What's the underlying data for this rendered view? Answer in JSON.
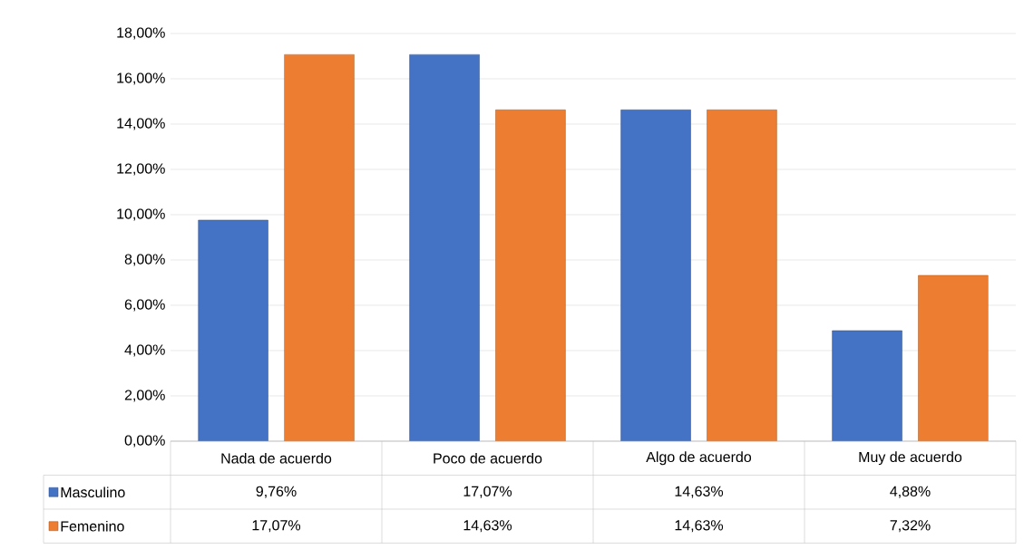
{
  "chart_data": {
    "type": "bar",
    "categories": [
      "Nada de acuerdo",
      "Poco de acuerdo",
      "Algo de acuerdo",
      "Muy de acuerdo"
    ],
    "series": [
      {
        "name": "Masculino",
        "color": "#4472c4",
        "values": [
          9.76,
          17.07,
          14.63,
          4.88
        ],
        "value_labels": [
          "9,76%",
          "17,07%",
          "14,63%",
          "4,88%"
        ]
      },
      {
        "name": "Femenino",
        "color": "#ed7d31",
        "values": [
          17.07,
          14.63,
          14.63,
          7.32
        ],
        "value_labels": [
          "17,07%",
          "14,63%",
          "14,63%",
          "7,32%"
        ]
      }
    ],
    "ylim": [
      0,
      18
    ],
    "yticks": [
      {
        "value": 0,
        "label": "0,00%"
      },
      {
        "value": 2,
        "label": "2,00%"
      },
      {
        "value": 4,
        "label": "4,00%"
      },
      {
        "value": 6,
        "label": "6,00%"
      },
      {
        "value": 8,
        "label": "8,00%"
      },
      {
        "value": 10,
        "label": "10,00%"
      },
      {
        "value": 12,
        "label": "12,00%"
      },
      {
        "value": 14,
        "label": "14,00%"
      },
      {
        "value": 16,
        "label": "16,00%"
      },
      {
        "value": 18,
        "label": "18,00%"
      }
    ],
    "grid": "y",
    "legend": "bottom"
  }
}
